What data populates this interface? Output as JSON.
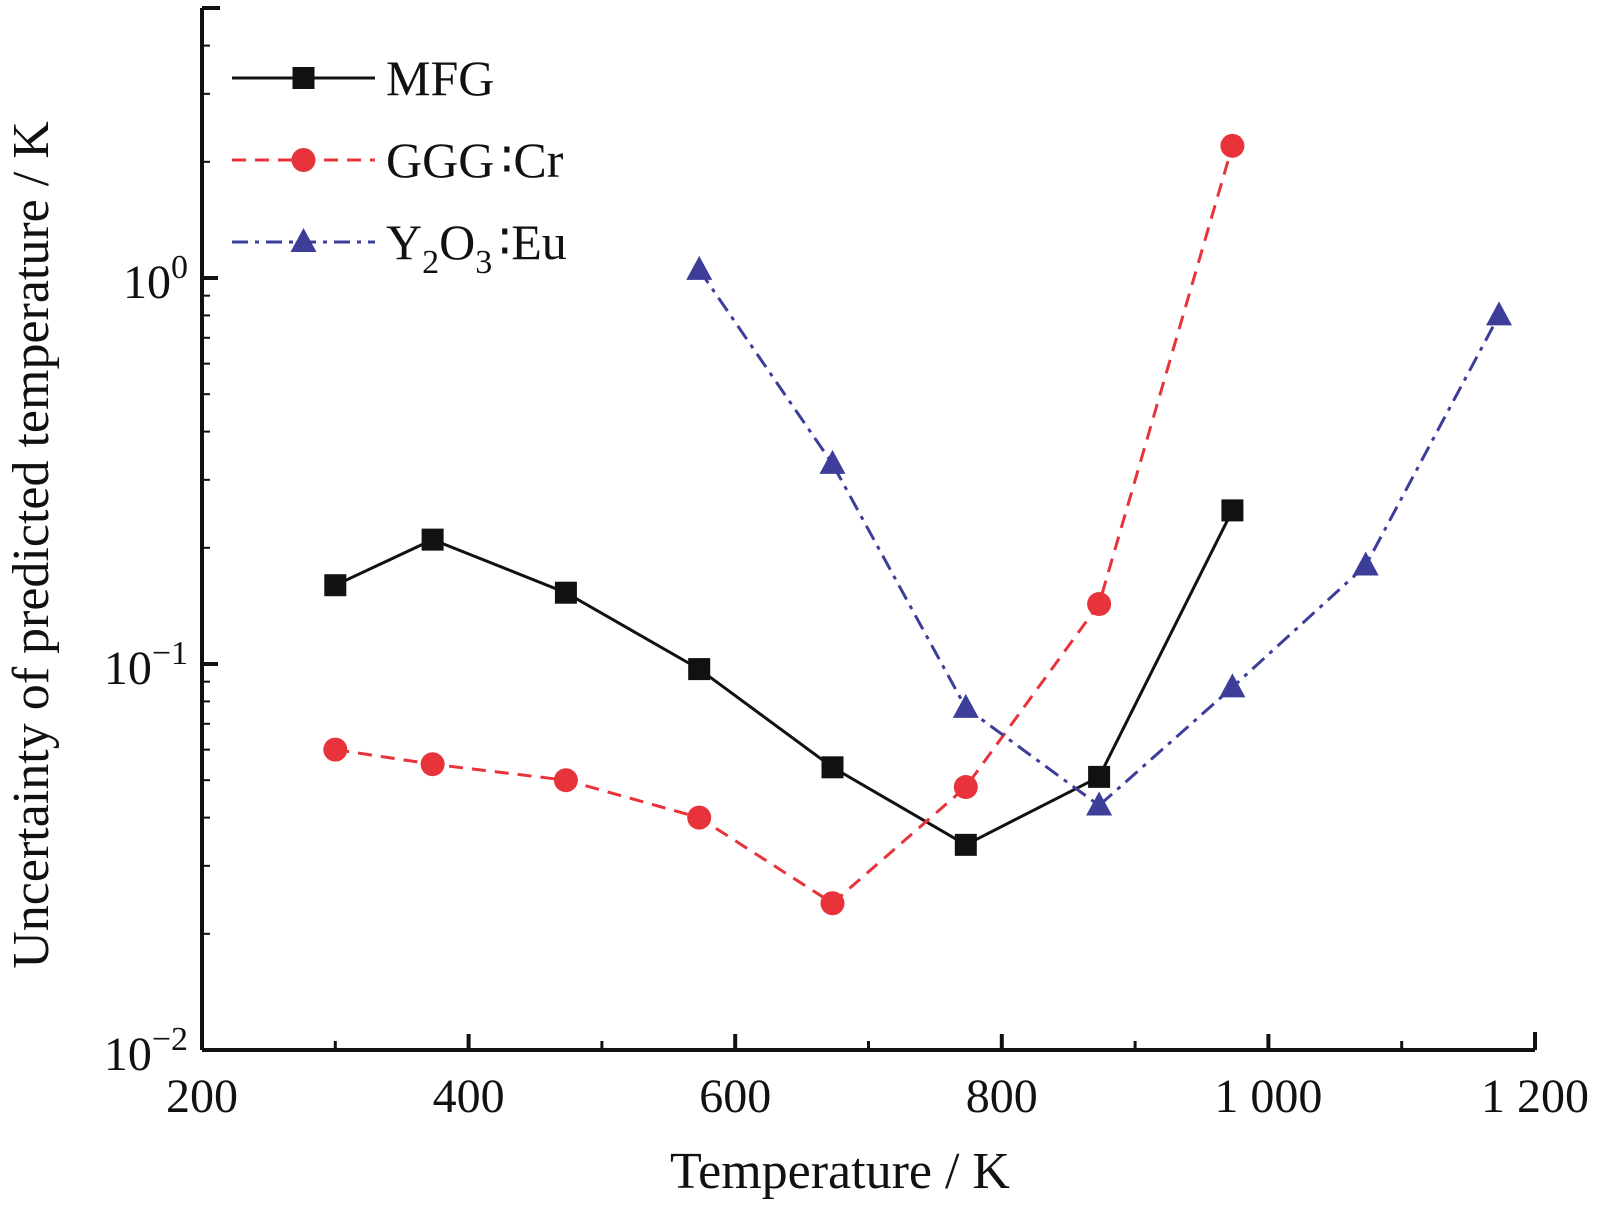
{
  "chart_data": {
    "type": "line",
    "title": "",
    "xlabel": "Temperature / K",
    "ylabel": "Uncertainty of predicted temperature / K",
    "x_scale": "linear",
    "y_scale": "log",
    "xlim": [
      200,
      1200
    ],
    "ylim": [
      0.01,
      5.5
    ],
    "x_ticks": [
      200,
      400,
      600,
      800,
      1000,
      1200
    ],
    "x_tick_labels": [
      "200",
      "400",
      "600",
      "800",
      "1 000",
      "1 200"
    ],
    "y_ticks": [
      {
        "value": 1,
        "base": "10",
        "exp": "0"
      },
      {
        "value": 0.1,
        "base": "10",
        "exp": "−1"
      },
      {
        "value": 0.01,
        "base": "10",
        "exp": "−2"
      }
    ],
    "grid": false,
    "legend_position": "top-left",
    "series": [
      {
        "name": "MFG",
        "legend_parts": [
          {
            "t": "MFG"
          }
        ],
        "color": "#111111",
        "line_style": "solid",
        "marker": "square",
        "x": [
          300,
          373,
          473,
          573,
          673,
          773,
          873,
          973
        ],
        "y": [
          0.16,
          0.21,
          0.153,
          0.097,
          0.054,
          0.034,
          0.051,
          0.25
        ]
      },
      {
        "name": "GGG:Cr",
        "legend_parts": [
          {
            "t": "GGG"
          },
          {
            "t": "∶",
            "sep": true
          },
          {
            "t": "Cr"
          }
        ],
        "color": "#e8333a",
        "line_style": "dashed",
        "marker": "circle",
        "x": [
          300,
          373,
          473,
          573,
          673,
          773,
          873,
          973
        ],
        "y": [
          0.06,
          0.055,
          0.05,
          0.04,
          0.024,
          0.048,
          0.143,
          2.2
        ]
      },
      {
        "name": "Y2O3:Eu",
        "legend_parts": [
          {
            "t": "Y"
          },
          {
            "t": "2",
            "sub": true
          },
          {
            "t": "O"
          },
          {
            "t": "3",
            "sub": true
          },
          {
            "t": "∶",
            "sep": true
          },
          {
            "t": "Eu"
          }
        ],
        "color": "#3d3d9a",
        "line_style": "dash-dot",
        "marker": "triangle",
        "x": [
          573,
          673,
          773,
          873,
          973,
          1073,
          1173
        ],
        "y": [
          1.05,
          0.33,
          0.077,
          0.043,
          0.087,
          0.18,
          0.8
        ]
      }
    ]
  }
}
